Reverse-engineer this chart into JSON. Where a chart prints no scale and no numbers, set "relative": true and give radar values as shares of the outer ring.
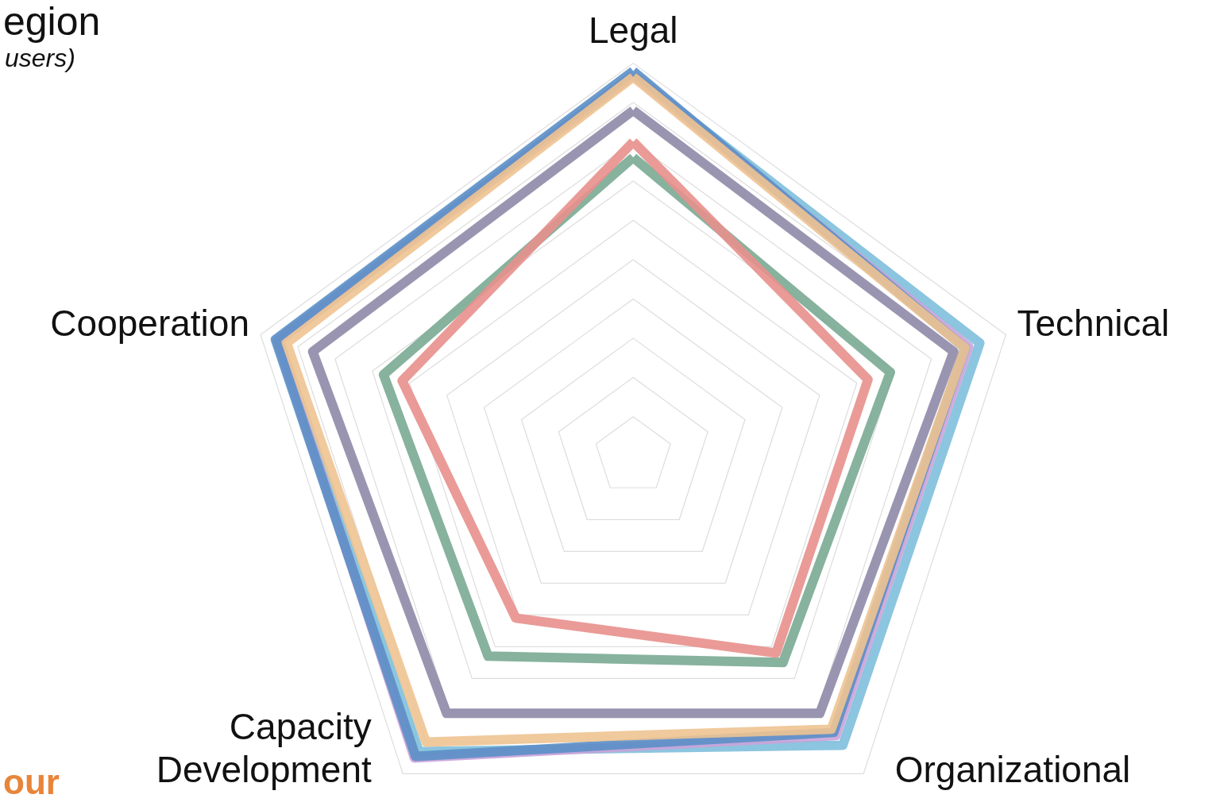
{
  "chart_data": {
    "type": "radar",
    "title": "egion",
    "subtitle": "users)",
    "annotations": [
      "our"
    ],
    "relative": true,
    "grid": true,
    "categories": [
      "Legal",
      "Technical",
      "Organizational",
      "Capacity Development",
      "Cooperation"
    ],
    "series": [
      {
        "color": "#7fbfdc",
        "values": [
          0.97,
          0.93,
          0.91,
          0.93,
          0.95
        ]
      },
      {
        "color": "#c9a3d9",
        "values": [
          0.97,
          0.9,
          0.88,
          0.95,
          0.955
        ]
      },
      {
        "color": "#5b8fc7",
        "values": [
          0.98,
          0.89,
          0.87,
          0.945,
          0.96
        ]
      },
      {
        "color": "#eec391",
        "values": [
          0.965,
          0.89,
          0.86,
          0.9,
          0.93
        ]
      },
      {
        "color": "#8e8aa8",
        "values": [
          0.88,
          0.86,
          0.81,
          0.81,
          0.86
        ]
      },
      {
        "color": "#7aaa93",
        "values": [
          0.76,
          0.69,
          0.65,
          0.63,
          0.67
        ]
      },
      {
        "color": "#e8908c",
        "values": [
          0.8,
          0.63,
          0.62,
          0.51,
          0.62
        ]
      }
    ]
  }
}
